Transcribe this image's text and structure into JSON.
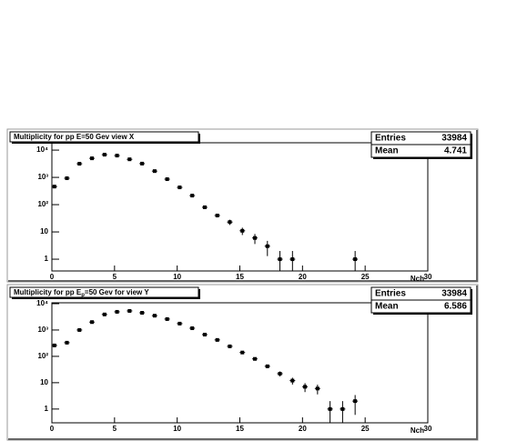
{
  "chart_data": [
    {
      "type": "scatter",
      "title": "Multiplicity for pp E=50 Gev view X",
      "xlabel": "Nch",
      "x": [
        0.2,
        1.2,
        2.2,
        3.2,
        4.2,
        5.2,
        6.2,
        7.2,
        8.2,
        9.2,
        10.2,
        11.2,
        12.2,
        13.2,
        14.2,
        15.2,
        16.2,
        17.2,
        18.2,
        19.2,
        24.2
      ],
      "values": [
        460,
        930,
        3160,
        5000,
        6800,
        6300,
        4600,
        3200,
        1700,
        860,
        430,
        215,
        80,
        40,
        23,
        11,
        6,
        3,
        1,
        1,
        1
      ],
      "errors": [
        21,
        30,
        56,
        71,
        82,
        79,
        68,
        57,
        41,
        29,
        21,
        15,
        9,
        6,
        5,
        3.3,
        2.4,
        1.7,
        1,
        1,
        1
      ],
      "color": "#000000",
      "log_y": true,
      "xlim": [
        0,
        30
      ],
      "xticks": [
        0,
        5,
        10,
        15,
        20,
        25,
        30
      ],
      "ylim": [
        0.37,
        18600
      ],
      "yticks": [
        1,
        10,
        {
          "value": 100,
          "label": "10²"
        },
        {
          "value": 1000,
          "label": "10³"
        },
        {
          "value": 10000,
          "label": "10⁴"
        }
      ],
      "stats": [
        {
          "label": "Entries",
          "value": 33984
        },
        {
          "label": "Mean",
          "value": 4.741
        }
      ]
    },
    {
      "type": "scatter",
      "title": [
        "Multiplicity for pp E",
        "p",
        "=50 Gev for view Y"
      ],
      "xlabel": "Nch",
      "x": [
        0.2,
        1.2,
        2.2,
        3.2,
        4.2,
        5.2,
        6.2,
        7.2,
        8.2,
        9.2,
        10.2,
        11.2,
        12.2,
        13.2,
        14.2,
        15.2,
        16.2,
        17.2,
        18.2,
        19.2,
        20.2,
        21.2,
        22.2,
        23.2,
        24.2
      ],
      "values": [
        260,
        330,
        1000,
        2000,
        3900,
        4900,
        5300,
        4500,
        3500,
        2600,
        1750,
        1170,
        670,
        420,
        240,
        140,
        80,
        42,
        22,
        12,
        7,
        6,
        1,
        1,
        2
      ],
      "errors": [
        16,
        18,
        32,
        45,
        62,
        70,
        73,
        67,
        59,
        51,
        42,
        34,
        26,
        20,
        15,
        12,
        9,
        6.5,
        4.7,
        3.5,
        2.6,
        2.4,
        1,
        1,
        1.4
      ],
      "color": "#000000",
      "log_y": true,
      "xlim": [
        0,
        30
      ],
      "xticks": [
        0,
        5,
        10,
        15,
        20,
        25,
        30
      ],
      "ylim": [
        0.3,
        10800
      ],
      "yticks": [
        1,
        10,
        {
          "value": 100,
          "label": "10²"
        },
        {
          "value": 1000,
          "label": "10³"
        },
        {
          "value": 10000,
          "label": "10⁴"
        }
      ],
      "stats": [
        {
          "label": "Entries",
          "value": 33984
        },
        {
          "label": "Mean",
          "value": 6.586
        }
      ]
    }
  ]
}
